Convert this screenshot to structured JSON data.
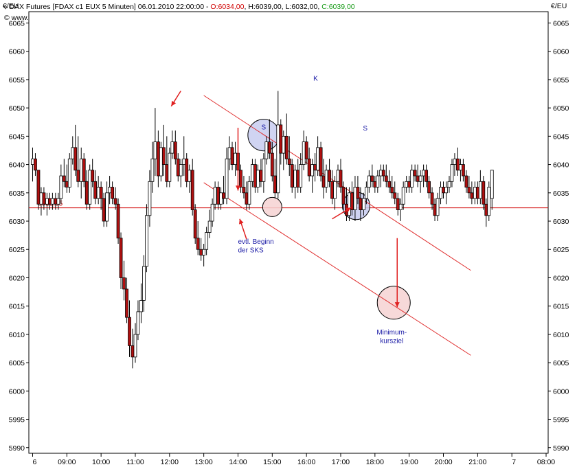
{
  "header": {
    "title": "DAX Futures [FDAX c1 EUX  5 Minuten] 06.01.2010 22:00:00 - ",
    "open": "O:6034,00",
    "high": "H:6039,00",
    "low": "L:6032,00",
    "close": "C:6039,00",
    "copyright": "© www.tradesignalonline.com",
    "unit_left": "€/EU",
    "unit_right": "€/EU",
    "colors": {
      "open": "#d00000",
      "close": "#1a9c1a",
      "text": "#000000"
    }
  },
  "chart_data": {
    "type": "candlestick",
    "ylim": [
      5989,
      6067
    ],
    "y_ticks": [
      6065,
      6060,
      6055,
      6050,
      6045,
      6040,
      6035,
      6030,
      6025,
      6020,
      6015,
      6010,
      6005,
      6000,
      5995,
      5990
    ],
    "x_ticks": [
      "6",
      "09:00",
      "10:00",
      "11:00",
      "12:00",
      "13:00",
      "14:00",
      "15:00",
      "16:00",
      "17:00",
      "18:00",
      "19:00",
      "20:00",
      "21:00",
      "7",
      "08:00"
    ],
    "x_tick_hours": [
      8,
      9,
      10,
      11,
      12,
      13,
      14,
      15,
      16,
      17,
      18,
      19,
      20,
      21,
      22,
      23
    ],
    "x_range": [
      7.85,
      23.1
    ],
    "candles": [
      [
        8.0,
        6040,
        6043,
        6037,
        6041
      ],
      [
        8.08,
        6041,
        6042,
        6038,
        6039
      ],
      [
        8.17,
        6039,
        6039,
        6032,
        6033
      ],
      [
        8.25,
        6033,
        6036,
        6031,
        6035
      ],
      [
        8.33,
        6035,
        6036,
        6032,
        6033
      ],
      [
        8.42,
        6033,
        6035,
        6031,
        6034
      ],
      [
        8.5,
        6034,
        6035,
        6032,
        6033
      ],
      [
        8.58,
        6033,
        6035,
        6032,
        6034
      ],
      [
        8.67,
        6034,
        6035,
        6032,
        6033
      ],
      [
        8.75,
        6033,
        6035,
        6032,
        6034
      ],
      [
        8.83,
        6034,
        6040,
        6033,
        6038
      ],
      [
        8.92,
        6038,
        6041,
        6036,
        6037
      ],
      [
        9.0,
        6037,
        6040,
        6035,
        6036
      ],
      [
        9.08,
        6036,
        6042,
        6035,
        6041
      ],
      [
        9.17,
        6041,
        6045,
        6040,
        6043
      ],
      [
        9.25,
        6043,
        6047,
        6038,
        6039
      ],
      [
        9.33,
        6039,
        6045,
        6036,
        6037
      ],
      [
        9.42,
        6037,
        6043,
        6034,
        6041
      ],
      [
        9.5,
        6041,
        6042,
        6036,
        6037
      ],
      [
        9.58,
        6037,
        6039,
        6032,
        6033
      ],
      [
        9.67,
        6033,
        6040,
        6032,
        6039
      ],
      [
        9.75,
        6039,
        6041,
        6036,
        6037
      ],
      [
        9.83,
        6037,
        6039,
        6033,
        6034
      ],
      [
        9.92,
        6034,
        6038,
        6033,
        6036
      ],
      [
        10.0,
        6036,
        6037,
        6032,
        6034
      ],
      [
        10.08,
        6034,
        6035,
        6029,
        6030
      ],
      [
        10.17,
        6030,
        6037,
        6029,
        6035
      ],
      [
        10.25,
        6035,
        6038,
        6033,
        6036
      ],
      [
        10.33,
        6036,
        6037,
        6033,
        6034
      ],
      [
        10.42,
        6034,
        6036,
        6032,
        6033
      ],
      [
        10.5,
        6033,
        6034,
        6026,
        6027
      ],
      [
        10.58,
        6027,
        6028,
        6018,
        6020
      ],
      [
        10.67,
        6020,
        6023,
        6016,
        6018
      ],
      [
        10.75,
        6018,
        6020,
        6012,
        6013
      ],
      [
        10.83,
        6013,
        6016,
        6006,
        6008
      ],
      [
        10.92,
        6008,
        6011,
        6004,
        6006
      ],
      [
        11.0,
        6006,
        6012,
        6005,
        6010
      ],
      [
        11.08,
        6010,
        6016,
        6009,
        6014
      ],
      [
        11.17,
        6014,
        6019,
        6012,
        6016
      ],
      [
        11.25,
        6016,
        6024,
        6014,
        6022
      ],
      [
        11.33,
        6022,
        6033,
        6021,
        6031
      ],
      [
        11.42,
        6031,
        6039,
        6029,
        6037
      ],
      [
        11.5,
        6037,
        6044,
        6035,
        6041
      ],
      [
        11.58,
        6041,
        6050,
        6038,
        6044
      ],
      [
        11.67,
        6044,
        6046,
        6036,
        6038
      ],
      [
        11.75,
        6038,
        6044,
        6037,
        6043
      ],
      [
        11.83,
        6043,
        6047,
        6038,
        6040
      ],
      [
        11.92,
        6040,
        6045,
        6036,
        6037
      ],
      [
        12.0,
        6037,
        6043,
        6036,
        6042
      ],
      [
        12.08,
        6042,
        6046,
        6041,
        6044
      ],
      [
        12.17,
        6044,
        6046,
        6040,
        6041
      ],
      [
        12.25,
        6041,
        6042,
        6037,
        6038
      ],
      [
        12.33,
        6038,
        6041,
        6036,
        6040
      ],
      [
        12.42,
        6040,
        6045,
        6038,
        6041
      ],
      [
        12.5,
        6041,
        6042,
        6036,
        6037
      ],
      [
        12.58,
        6037,
        6040,
        6035,
        6039
      ],
      [
        12.67,
        6039,
        6041,
        6031,
        6032
      ],
      [
        12.75,
        6032,
        6033,
        6026,
        6027
      ],
      [
        12.83,
        6027,
        6030,
        6024,
        6025
      ],
      [
        12.92,
        6025,
        6027,
        6023,
        6024
      ],
      [
        13.0,
        6024,
        6026,
        6022,
        6025
      ],
      [
        13.08,
        6025,
        6029,
        6024,
        6028
      ],
      [
        13.17,
        6028,
        6032,
        6027,
        6030
      ],
      [
        13.25,
        6030,
        6034,
        6029,
        6033
      ],
      [
        13.33,
        6033,
        6037,
        6032,
        6036
      ],
      [
        13.42,
        6036,
        6037,
        6032,
        6033
      ],
      [
        13.5,
        6033,
        6036,
        6032,
        6035
      ],
      [
        13.58,
        6035,
        6038,
        6033,
        6034
      ],
      [
        13.67,
        6034,
        6043,
        6033,
        6041
      ],
      [
        13.75,
        6041,
        6045,
        6039,
        6043
      ],
      [
        13.83,
        6043,
        6044,
        6039,
        6040
      ],
      [
        13.92,
        6040,
        6044,
        6038,
        6042
      ],
      [
        14.0,
        6042,
        6043,
        6038,
        6039
      ],
      [
        14.08,
        6039,
        6040,
        6035,
        6036
      ],
      [
        14.17,
        6036,
        6038,
        6034,
        6035
      ],
      [
        14.25,
        6035,
        6037,
        6032,
        6033
      ],
      [
        14.33,
        6033,
        6038,
        6032,
        6037
      ],
      [
        14.42,
        6037,
        6041,
        6036,
        6040
      ],
      [
        14.5,
        6040,
        6041,
        6035,
        6036
      ],
      [
        14.58,
        6036,
        6040,
        6035,
        6039
      ],
      [
        14.67,
        6039,
        6041,
        6036,
        6037
      ],
      [
        14.75,
        6037,
        6042,
        6035,
        6041
      ],
      [
        14.83,
        6041,
        6045,
        6040,
        6044
      ],
      [
        14.92,
        6044,
        6048,
        6041,
        6042
      ],
      [
        15.0,
        6042,
        6044,
        6037,
        6038
      ],
      [
        15.08,
        6038,
        6041,
        6034,
        6035
      ],
      [
        15.17,
        6035,
        6053,
        6034,
        6047
      ],
      [
        15.25,
        6047,
        6048,
        6040,
        6042
      ],
      [
        15.33,
        6042,
        6046,
        6039,
        6045
      ],
      [
        15.42,
        6045,
        6049,
        6040,
        6041
      ],
      [
        15.5,
        6041,
        6045,
        6038,
        6040
      ],
      [
        15.58,
        6040,
        6041,
        6035,
        6036
      ],
      [
        15.67,
        6036,
        6040,
        6034,
        6039
      ],
      [
        15.75,
        6039,
        6041,
        6035,
        6036
      ],
      [
        15.83,
        6036,
        6042,
        6035,
        6040
      ],
      [
        15.92,
        6040,
        6046,
        6039,
        6044
      ],
      [
        16.0,
        6044,
        6045,
        6040,
        6041
      ],
      [
        16.08,
        6041,
        6043,
        6037,
        6038
      ],
      [
        16.17,
        6038,
        6041,
        6035,
        6040
      ],
      [
        16.25,
        6040,
        6042,
        6037,
        6039
      ],
      [
        16.33,
        6039,
        6045,
        6038,
        6043
      ],
      [
        16.42,
        6043,
        6044,
        6037,
        6038
      ],
      [
        16.5,
        6038,
        6041,
        6034,
        6036
      ],
      [
        16.58,
        6036,
        6040,
        6035,
        6039
      ],
      [
        16.67,
        6039,
        6041,
        6036,
        6037
      ],
      [
        16.75,
        6037,
        6039,
        6033,
        6034
      ],
      [
        16.83,
        6034,
        6038,
        6032,
        6037
      ],
      [
        16.92,
        6037,
        6040,
        6036,
        6039
      ],
      [
        17.0,
        6039,
        6041,
        6035,
        6036
      ],
      [
        17.08,
        6036,
        6037,
        6032,
        6033
      ],
      [
        17.17,
        6033,
        6036,
        6030,
        6031
      ],
      [
        17.25,
        6031,
        6036,
        6030,
        6035
      ],
      [
        17.33,
        6035,
        6037,
        6031,
        6032
      ],
      [
        17.42,
        6032,
        6038,
        6030,
        6036
      ],
      [
        17.5,
        6036,
        6038,
        6033,
        6034
      ],
      [
        17.58,
        6034,
        6036,
        6030,
        6032
      ],
      [
        17.67,
        6032,
        6035,
        6031,
        6034
      ],
      [
        17.75,
        6034,
        6037,
        6033,
        6036
      ],
      [
        17.83,
        6036,
        6039,
        6035,
        6038
      ],
      [
        17.92,
        6038,
        6040,
        6036,
        6037
      ],
      [
        18.0,
        6037,
        6038,
        6035,
        6036
      ],
      [
        18.08,
        6036,
        6039,
        6035,
        6038
      ],
      [
        18.17,
        6038,
        6040,
        6036,
        6039
      ],
      [
        18.25,
        6039,
        6040,
        6037,
        6038
      ],
      [
        18.33,
        6038,
        6040,
        6036,
        6037
      ],
      [
        18.42,
        6037,
        6039,
        6035,
        6036
      ],
      [
        18.5,
        6036,
        6038,
        6034,
        6035
      ],
      [
        18.58,
        6035,
        6037,
        6033,
        6034
      ],
      [
        18.67,
        6034,
        6035,
        6031,
        6032
      ],
      [
        18.75,
        6032,
        6034,
        6030,
        6033
      ],
      [
        18.83,
        6033,
        6037,
        6032,
        6036
      ],
      [
        18.92,
        6036,
        6038,
        6035,
        6037
      ],
      [
        19.0,
        6037,
        6038,
        6035,
        6036
      ],
      [
        19.08,
        6036,
        6040,
        6035,
        6039
      ],
      [
        19.17,
        6039,
        6040,
        6037,
        6038
      ],
      [
        19.25,
        6038,
        6040,
        6036,
        6037
      ],
      [
        19.33,
        6037,
        6039,
        6035,
        6038
      ],
      [
        19.42,
        6038,
        6040,
        6036,
        6039
      ],
      [
        19.5,
        6039,
        6040,
        6036,
        6037
      ],
      [
        19.58,
        6037,
        6038,
        6034,
        6035
      ],
      [
        19.67,
        6035,
        6036,
        6032,
        6033
      ],
      [
        19.75,
        6033,
        6034,
        6030,
        6031
      ],
      [
        19.83,
        6031,
        6035,
        6030,
        6034
      ],
      [
        19.92,
        6034,
        6037,
        6033,
        6036
      ],
      [
        20.0,
        6036,
        6037,
        6034,
        6035
      ],
      [
        20.08,
        6035,
        6037,
        6033,
        6036
      ],
      [
        20.17,
        6036,
        6038,
        6035,
        6037
      ],
      [
        20.25,
        6037,
        6041,
        6036,
        6040
      ],
      [
        20.33,
        6040,
        6042,
        6038,
        6041
      ],
      [
        20.42,
        6041,
        6043,
        6038,
        6039
      ],
      [
        20.5,
        6039,
        6041,
        6037,
        6040
      ],
      [
        20.58,
        6040,
        6041,
        6037,
        6038
      ],
      [
        20.67,
        6038,
        6039,
        6035,
        6036
      ],
      [
        20.75,
        6036,
        6038,
        6034,
        6035
      ],
      [
        20.83,
        6035,
        6037,
        6033,
        6034
      ],
      [
        20.92,
        6034,
        6037,
        6033,
        6036
      ],
      [
        21.0,
        6036,
        6037,
        6033,
        6034
      ],
      [
        21.08,
        6034,
        6039,
        6033,
        6037
      ],
      [
        21.17,
        6037,
        6038,
        6032,
        6033
      ],
      [
        21.25,
        6033,
        6034,
        6029,
        6031
      ],
      [
        21.33,
        6031,
        6037,
        6030,
        6036
      ],
      [
        21.42,
        6034,
        6039,
        6032,
        6039
      ]
    ],
    "reference_line": {
      "value": 6032.35,
      "label": "6032,35",
      "color": "#d00000"
    },
    "trendlines": [
      {
        "from": [
          13.0,
          6052.2
        ],
        "to": [
          20.8,
          6021.3
        ]
      },
      {
        "from": [
          13.0,
          6036.8
        ],
        "to": [
          20.8,
          6006.3
        ]
      }
    ],
    "circles": [
      {
        "at": [
          14.75,
          6045.2
        ],
        "fill": "#c8cdf0",
        "label": "S"
      },
      {
        "at": [
          15.0,
          6032.5
        ],
        "fill": "#f6d2d2",
        "label": ""
      },
      {
        "at": [
          17.45,
          6032.7
        ],
        "fill": "#c8cdf0",
        "label": ""
      },
      {
        "at": [
          18.55,
          6015.6
        ],
        "fill": "#f6d2d2",
        "label": ""
      }
    ],
    "annotations": [
      {
        "text": "K",
        "at": [
          16.2,
          6054.8
        ]
      },
      {
        "text": "S",
        "at": [
          17.65,
          6046.0
        ]
      },
      {
        "text": "evtl. Beginn",
        "at": [
          14.0,
          6026.0
        ]
      },
      {
        "text": "der SKS",
        "at": [
          14.0,
          6024.5
        ]
      },
      {
        "text": "Minimum-",
        "at": [
          18.05,
          6010.0
        ]
      },
      {
        "text": "kursziel",
        "at": [
          18.15,
          6008.5
        ]
      }
    ],
    "arrows": [
      {
        "from": [
          12.33,
          6053.0
        ],
        "to": [
          12.05,
          6050.3
        ]
      },
      {
        "from": [
          14.0,
          6046.5
        ],
        "to": [
          14.0,
          6035.4
        ]
      },
      {
        "from": [
          14.25,
          6026.8
        ],
        "to": [
          14.05,
          6030.4
        ]
      },
      {
        "from": [
          16.75,
          6030.4
        ],
        "to": [
          17.3,
          6032.4
        ]
      },
      {
        "from": [
          18.65,
          6027.0
        ],
        "to": [
          18.65,
          6014.8
        ]
      }
    ],
    "colors": {
      "up": "#ffffff",
      "down": "#b01010",
      "trend": "#e03030",
      "annotation": "#1a1aa6"
    }
  }
}
